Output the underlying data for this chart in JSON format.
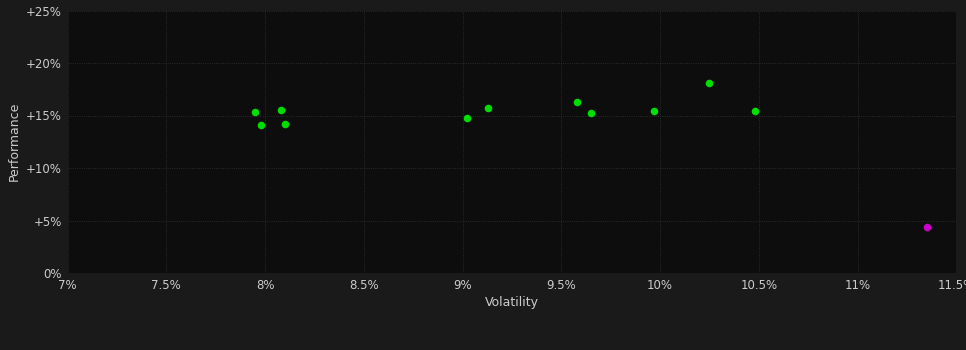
{
  "background_color": "#1a1a1a",
  "plot_bg_color": "#0d0d0d",
  "grid_color": "#333333",
  "xlabel": "Volatility",
  "ylabel": "Performance",
  "x_min": 0.07,
  "x_max": 0.115,
  "y_min": 0.0,
  "y_max": 0.25,
  "x_ticks": [
    0.07,
    0.075,
    0.08,
    0.085,
    0.09,
    0.095,
    0.1,
    0.105,
    0.11,
    0.115
  ],
  "y_ticks": [
    0.0,
    0.05,
    0.1,
    0.15,
    0.2,
    0.25
  ],
  "green_points": [
    [
      0.0795,
      0.153
    ],
    [
      0.0808,
      0.155
    ],
    [
      0.0798,
      0.141
    ],
    [
      0.081,
      0.142
    ],
    [
      0.0902,
      0.148
    ],
    [
      0.0913,
      0.157
    ],
    [
      0.0958,
      0.163
    ],
    [
      0.0965,
      0.152
    ],
    [
      0.0997,
      0.154
    ],
    [
      0.1025,
      0.181
    ],
    [
      0.1048,
      0.154
    ]
  ],
  "magenta_points": [
    [
      0.1135,
      0.044
    ]
  ],
  "green_color": "#00dd00",
  "magenta_color": "#cc00cc",
  "marker_size": 30,
  "font_color": "#cccccc",
  "tick_font_size": 8.5,
  "label_font_size": 9
}
